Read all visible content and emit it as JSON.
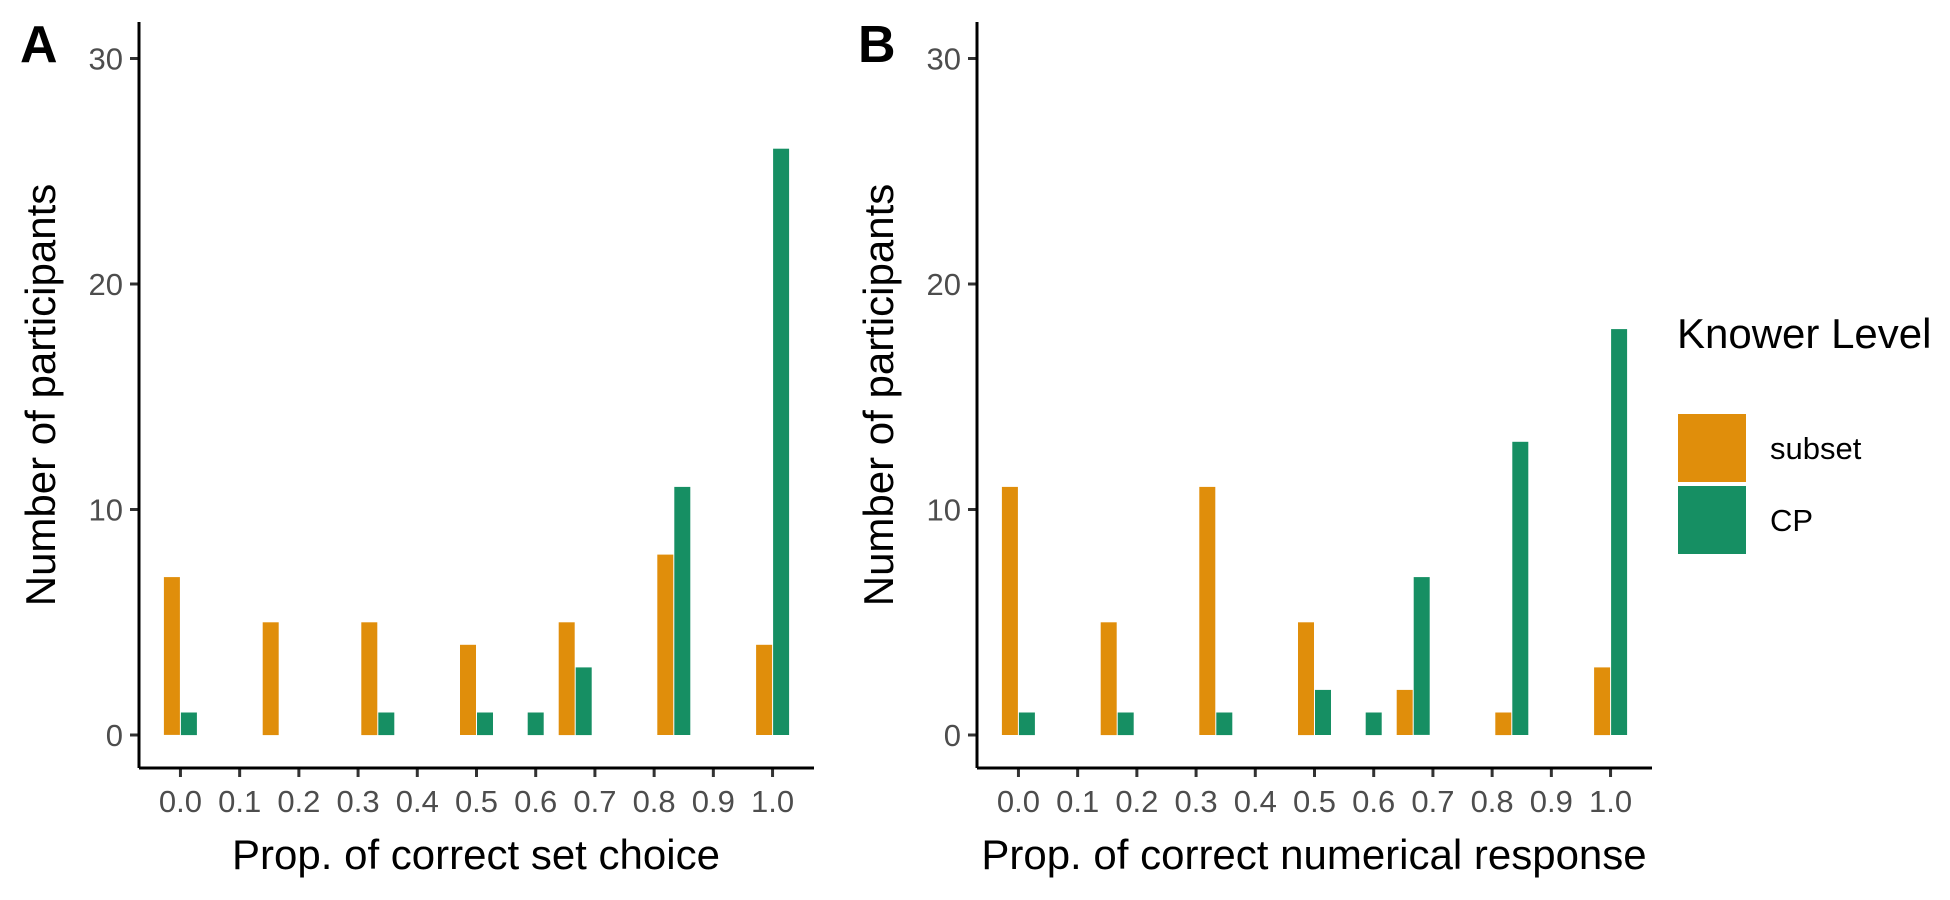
{
  "colors": {
    "subset": "#E08E0B",
    "CP": "#168F63"
  },
  "legend": {
    "title": "Knower Level",
    "items": [
      {
        "label": "subset",
        "color": "#E08E0B"
      },
      {
        "label": "CP",
        "color": "#168F63"
      }
    ]
  },
  "chart_data": [
    {
      "type": "bar",
      "panel_label": "A",
      "xlabel": "Prop. of correct set choice",
      "ylabel": "Number of participants",
      "ylim": [
        0,
        30
      ],
      "yticks": [
        0,
        10,
        20,
        30
      ],
      "xlim": [
        -0.07,
        1.07
      ],
      "xticks": [
        "0.0",
        "0.1",
        "0.2",
        "0.3",
        "0.4",
        "0.5",
        "0.6",
        "0.7",
        "0.8",
        "0.9",
        "1.0"
      ],
      "grid": false,
      "legend_position": "right",
      "x": [
        0.0,
        0.1667,
        0.3333,
        0.5,
        0.6667,
        0.8333,
        1.0
      ],
      "series": [
        {
          "name": "subset",
          "values": [
            7,
            5,
            5,
            4,
            5,
            8,
            4
          ]
        },
        {
          "name": "CP",
          "values": [
            1,
            0,
            1,
            1,
            3,
            11,
            26
          ]
        }
      ],
      "extra_bars": [
        {
          "series": "CP",
          "x": 0.6,
          "value": 1
        }
      ]
    },
    {
      "type": "bar",
      "panel_label": "B",
      "xlabel": "Prop. of correct numerical response",
      "ylabel": "Number of participants",
      "ylim": [
        0,
        30
      ],
      "yticks": [
        0,
        10,
        20,
        30
      ],
      "xlim": [
        -0.07,
        1.07
      ],
      "xticks": [
        "0.0",
        "0.1",
        "0.2",
        "0.3",
        "0.4",
        "0.5",
        "0.6",
        "0.7",
        "0.8",
        "0.9",
        "1.0"
      ],
      "grid": false,
      "legend_position": "right",
      "x": [
        0.0,
        0.1667,
        0.3333,
        0.5,
        0.6667,
        0.8333,
        1.0
      ],
      "series": [
        {
          "name": "subset",
          "values": [
            11,
            5,
            11,
            5,
            2,
            1,
            3
          ]
        },
        {
          "name": "CP",
          "values": [
            1,
            1,
            1,
            2,
            7,
            13,
            18
          ]
        }
      ],
      "extra_bars": [
        {
          "series": "CP",
          "x": 0.6,
          "value": 1
        }
      ]
    }
  ]
}
